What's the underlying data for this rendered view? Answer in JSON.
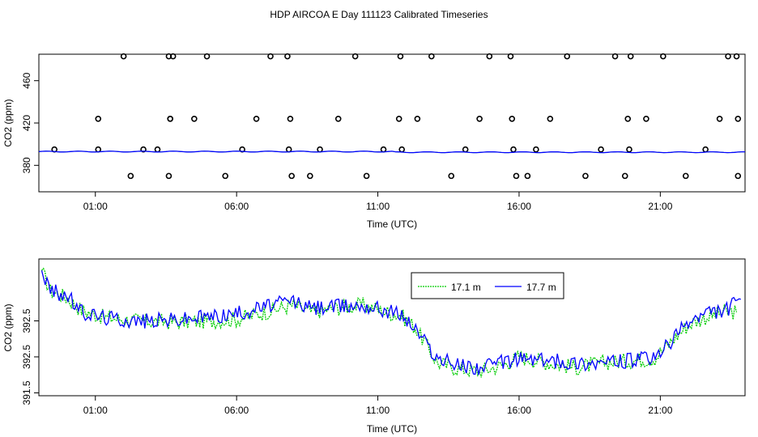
{
  "page_title": "HDP AIRCOA E  Day 111123  Calibrated Timeseries",
  "chart_data": [
    {
      "type": "scatter",
      "xlabel": "Time (UTC)",
      "ylabel": "CO2 (ppm)",
      "x_ticks": [
        "01:00",
        "06:00",
        "11:00",
        "16:00",
        "21:00"
      ],
      "x_tick_hours": [
        1,
        6,
        11,
        16,
        21
      ],
      "xlim_hours": [
        -1.0,
        24.0
      ],
      "ylim": [
        355,
        485
      ],
      "y_ticks": [
        380,
        420,
        460
      ],
      "series": [
        {
          "marker": "circle",
          "color": "#000000",
          "hours": [
            -0.45,
            1.1,
            1.1,
            2.0,
            2.25,
            2.7,
            3.2,
            3.6,
            3.6,
            3.65,
            3.65,
            3.75,
            4.5,
            4.95,
            5.6,
            6.2,
            6.7,
            7.2,
            7.8,
            7.85,
            7.9,
            7.95,
            8.6,
            8.95,
            9.6,
            10.2,
            10.6,
            11.2,
            11.75,
            11.8,
            11.85,
            12.4,
            12.9,
            13.6,
            14.1,
            14.6,
            14.95,
            15.7,
            15.75,
            15.8,
            15.9,
            16.3,
            16.6,
            17.1,
            17.7,
            18.35,
            18.9,
            19.4,
            19.75,
            19.85,
            19.9,
            19.95,
            20.5,
            21.1,
            21.9,
            22.6,
            23.1,
            23.4,
            23.7,
            23.75,
            23.75
          ]
        },
        {
          "name": "",
          "color": "#0000ff",
          "line": true,
          "hours": [
            -1.0,
            24.0
          ]
        }
      ]
    },
    {
      "type": "line",
      "xlabel": "Time (UTC)",
      "ylabel": "CO2 (ppm)",
      "x_ticks": [
        "01:00",
        "06:00",
        "11:00",
        "16:00",
        "21:00"
      ],
      "x_tick_hours": [
        1,
        6,
        11,
        16,
        21
      ],
      "xlim_hours": [
        -1.0,
        24.0
      ],
      "ylim": [
        391.46,
        393.36
      ],
      "y_ticks": [
        "391.5",
        "392.5",
        "392.5"
      ],
      "legend_position": "top-center",
      "series": [
        {
          "name": "17.1 m",
          "color": "#00cc00",
          "dashed": true,
          "anchors": [
            [
              -0.9,
              393.2
            ],
            [
              -0.6,
              392.92
            ],
            [
              0.0,
              392.82
            ],
            [
              0.5,
              392.65
            ],
            [
              1.3,
              392.55
            ],
            [
              2.5,
              392.5
            ],
            [
              4.0,
              392.48
            ],
            [
              5.0,
              392.5
            ],
            [
              6.0,
              392.52
            ],
            [
              7.0,
              392.62
            ],
            [
              8.0,
              392.72
            ],
            [
              8.6,
              392.62
            ],
            [
              9.5,
              392.68
            ],
            [
              10.5,
              392.72
            ],
            [
              11.3,
              392.62
            ],
            [
              11.8,
              392.58
            ],
            [
              12.3,
              392.42
            ],
            [
              12.7,
              392.18
            ],
            [
              13.1,
              391.92
            ],
            [
              13.7,
              391.85
            ],
            [
              14.6,
              391.8
            ],
            [
              15.4,
              391.88
            ],
            [
              16.0,
              392.0
            ],
            [
              17.0,
              391.92
            ],
            [
              18.0,
              391.85
            ],
            [
              19.0,
              391.92
            ],
            [
              20.0,
              391.95
            ],
            [
              20.8,
              391.98
            ],
            [
              21.3,
              392.18
            ],
            [
              22.0,
              392.45
            ],
            [
              22.6,
              392.55
            ],
            [
              23.3,
              392.62
            ],
            [
              23.7,
              392.62
            ]
          ]
        },
        {
          "name": "17.7 m",
          "color": "#0000ff",
          "anchors": [
            [
              -0.9,
              393.2
            ],
            [
              -0.6,
              392.92
            ],
            [
              0.0,
              392.85
            ],
            [
              0.5,
              392.62
            ],
            [
              1.3,
              392.55
            ],
            [
              2.5,
              392.5
            ],
            [
              4.0,
              392.52
            ],
            [
              5.0,
              392.56
            ],
            [
              6.0,
              392.6
            ],
            [
              7.0,
              392.7
            ],
            [
              8.0,
              392.78
            ],
            [
              8.6,
              392.68
            ],
            [
              9.5,
              392.7
            ],
            [
              10.5,
              392.72
            ],
            [
              11.3,
              392.65
            ],
            [
              11.8,
              392.6
            ],
            [
              12.3,
              392.4
            ],
            [
              12.7,
              392.2
            ],
            [
              13.1,
              391.98
            ],
            [
              13.7,
              391.9
            ],
            [
              14.6,
              391.85
            ],
            [
              15.4,
              391.92
            ],
            [
              16.0,
              391.98
            ],
            [
              17.0,
              391.95
            ],
            [
              18.0,
              391.92
            ],
            [
              19.0,
              391.92
            ],
            [
              20.0,
              391.95
            ],
            [
              20.8,
              391.98
            ],
            [
              21.3,
              392.18
            ],
            [
              22.0,
              392.48
            ],
            [
              22.6,
              392.6
            ],
            [
              23.3,
              392.65
            ],
            [
              23.85,
              392.8
            ]
          ]
        }
      ]
    }
  ]
}
